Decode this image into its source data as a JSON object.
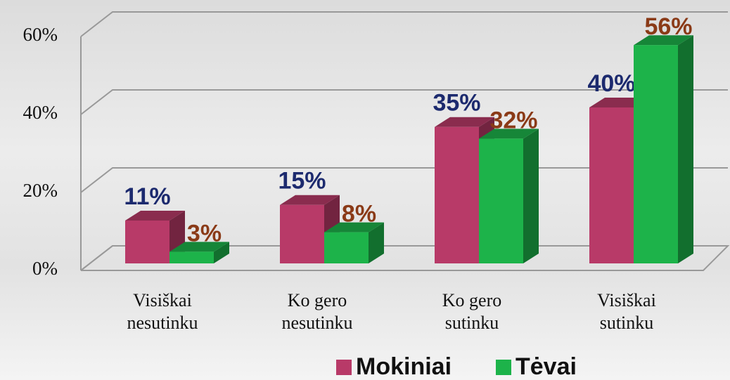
{
  "chart_data": {
    "type": "bar3d",
    "categories": [
      "Visiškai nesutinku",
      "Ko gero nesutinku",
      "Ko gero sutinku",
      "Visiškai sutinku"
    ],
    "series": [
      {
        "name": "Mokiniai",
        "color": "#b83a68",
        "label_color": "#1c2a6e",
        "values": [
          11,
          15,
          35,
          40
        ],
        "value_labels": [
          "11%",
          "15%",
          "35%",
          "40%"
        ]
      },
      {
        "name": "Tėvai",
        "color": "#1db34a",
        "label_color": "#8a3a17",
        "values": [
          3,
          8,
          32,
          56
        ],
        "value_labels": [
          "3%",
          "8%",
          "32%",
          "56%"
        ]
      }
    ],
    "ylim": [
      0,
      60
    ],
    "yticks": [
      {
        "value": 0,
        "label": "0%"
      },
      {
        "value": 20,
        "label": "20%"
      },
      {
        "value": 40,
        "label": "40%"
      },
      {
        "value": 60,
        "label": "60%"
      }
    ],
    "grid": true,
    "legend": "bottom"
  }
}
